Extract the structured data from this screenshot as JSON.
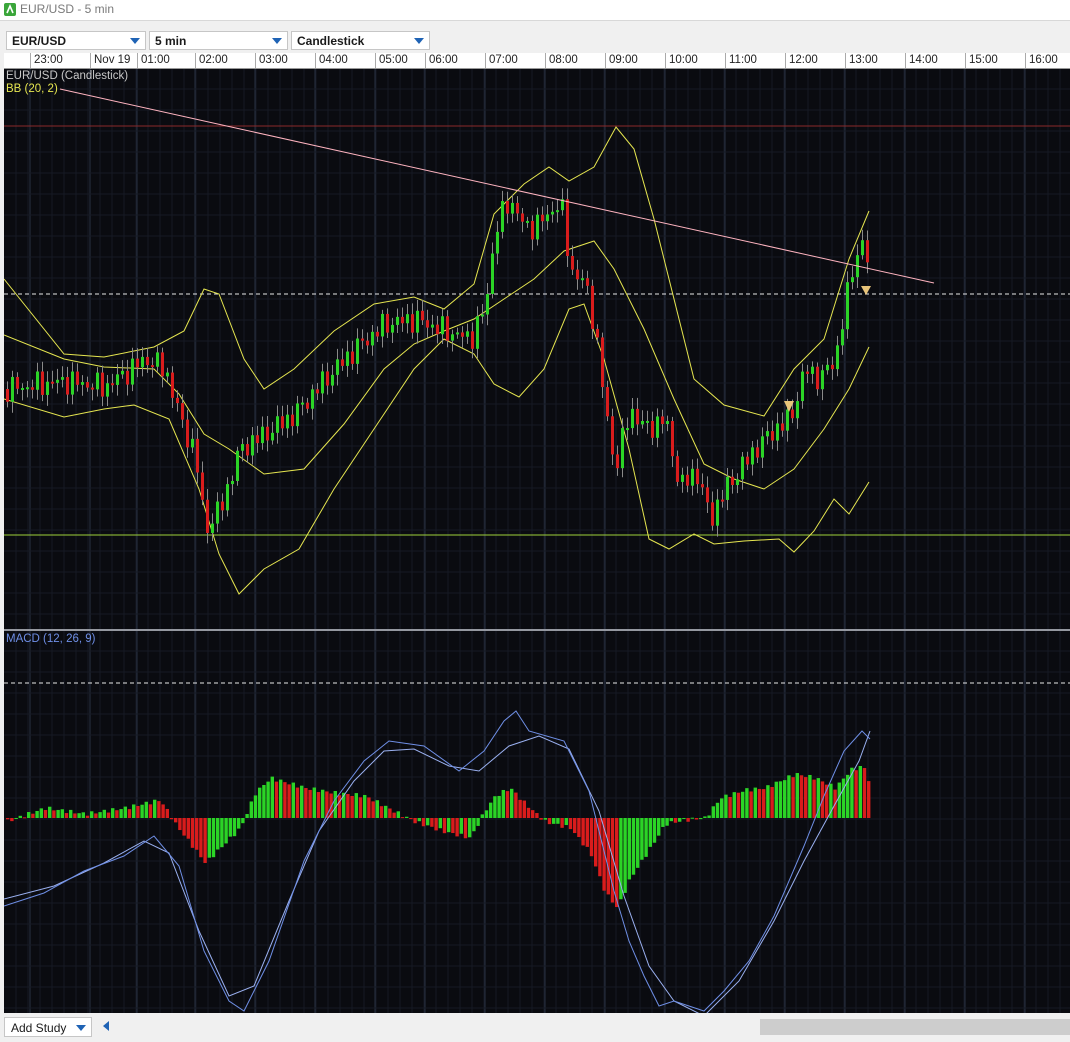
{
  "window": {
    "title": "EUR/USD - 5 min"
  },
  "toolbar": {
    "symbol": "EUR/USD",
    "interval": "5 min",
    "chart_style": "Candlestick"
  },
  "time_axis": {
    "labels": [
      "23:00",
      "Nov 19",
      "01:00",
      "02:00",
      "03:00",
      "04:00",
      "05:00",
      "06:00",
      "07:00",
      "08:00",
      "09:00",
      "10:00",
      "11:00",
      "12:00",
      "13:00",
      "14:00",
      "15:00",
      "16:00"
    ]
  },
  "price_panel": {
    "label": "EUR/USD (Candlestick)",
    "indicator_label": "BB (20, 2)"
  },
  "macd_panel": {
    "label": "MACD (12, 26, 9)"
  },
  "bottom_bar": {
    "add_study_label": "Add Study"
  },
  "colors": {
    "background": "#0a0b10",
    "grid": "#1d2230",
    "up_candle": "#2bd426",
    "down_candle": "#d91c1c",
    "bollinger": "#e6e650",
    "trendline": "#ffb4c0",
    "resistance": "#8a2a2a",
    "support": "#9fd03a",
    "macd_line": "#6f8fe6",
    "signal_line": "#9ab0f0",
    "marker": "#e8c47a"
  }
}
